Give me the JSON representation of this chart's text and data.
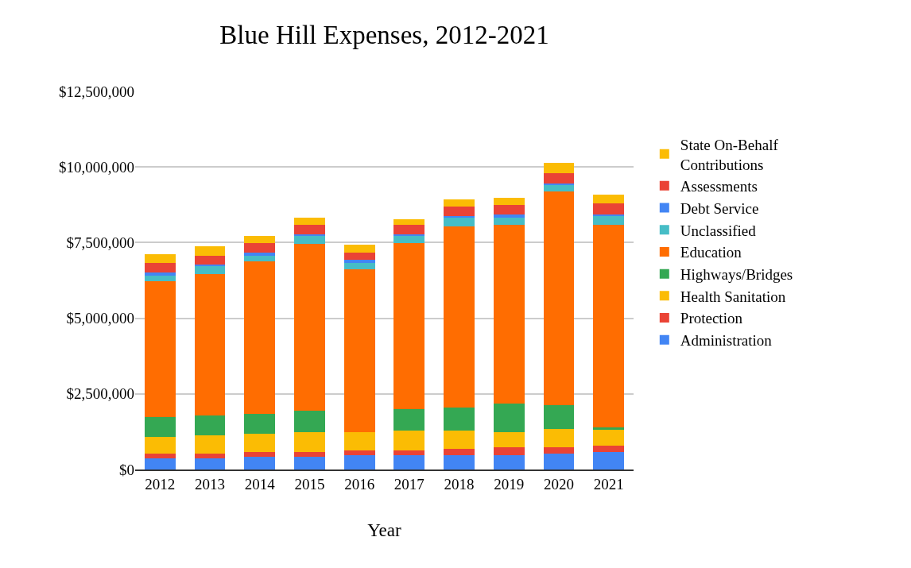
{
  "chart_data": {
    "type": "bar",
    "stacked": true,
    "title": "Blue Hill Expenses, 2012-2021",
    "xlabel": "Year",
    "categories": [
      "2012",
      "2013",
      "2014",
      "2015",
      "2016",
      "2017",
      "2018",
      "2019",
      "2020",
      "2021"
    ],
    "ylim": [
      0,
      12500000
    ],
    "yticks": [
      {
        "value": 0,
        "label": "$0"
      },
      {
        "value": 2500000,
        "label": "$2,500,000"
      },
      {
        "value": 5000000,
        "label": "$5,000,000"
      },
      {
        "value": 7500000,
        "label": "$7,500,000"
      },
      {
        "value": 10000000,
        "label": "$10,000,000"
      },
      {
        "value": 12500000,
        "label": "$12,500,000"
      }
    ],
    "grid": "y",
    "legend": "right",
    "series": [
      {
        "name": "Administration",
        "color": "#4285f4",
        "values": [
          376000,
          376000,
          420000,
          420000,
          473000,
          464000,
          464000,
          464000,
          525000,
          569000
        ]
      },
      {
        "name": "Protection",
        "color": "#ea4335",
        "values": [
          149000,
          149000,
          158000,
          158000,
          157000,
          158000,
          210000,
          263000,
          202000,
          210000
        ]
      },
      {
        "name": "Health Sanitation",
        "color": "#fbbc04",
        "values": [
          552000,
          613000,
          604000,
          656000,
          604000,
          656000,
          604000,
          507000,
          604000,
          552000
        ]
      },
      {
        "name": "Highways/Bridges",
        "color": "#34a853",
        "values": [
          656000,
          648000,
          656000,
          701000,
          0,
          718000,
          762000,
          954000,
          805000,
          52000
        ]
      },
      {
        "name": "Education",
        "color": "#ff6d01",
        "values": [
          4491000,
          4674000,
          5034000,
          5531000,
          5384000,
          5488000,
          5996000,
          5892000,
          7055000,
          6697000
        ]
      },
      {
        "name": "Unclassified",
        "color": "#46bdc6",
        "values": [
          192000,
          263000,
          192000,
          263000,
          210000,
          245000,
          306000,
          245000,
          201000,
          306000
        ]
      },
      {
        "name": "Debt Service",
        "color": "#4285f4",
        "values": [
          97000,
          44000,
          105000,
          44000,
          96000,
          44000,
          44000,
          105000,
          53000,
          44000
        ]
      },
      {
        "name": "Assessments",
        "color": "#ea4335",
        "values": [
          315000,
          306000,
          315000,
          307000,
          254000,
          307000,
          306000,
          306000,
          350000,
          367000
        ]
      },
      {
        "name": "State On-Behalf Contributions",
        "color": "#fbbc04",
        "values": [
          297000,
          306000,
          236000,
          245000,
          245000,
          201000,
          237000,
          245000,
          341000,
          289000
        ]
      }
    ]
  }
}
